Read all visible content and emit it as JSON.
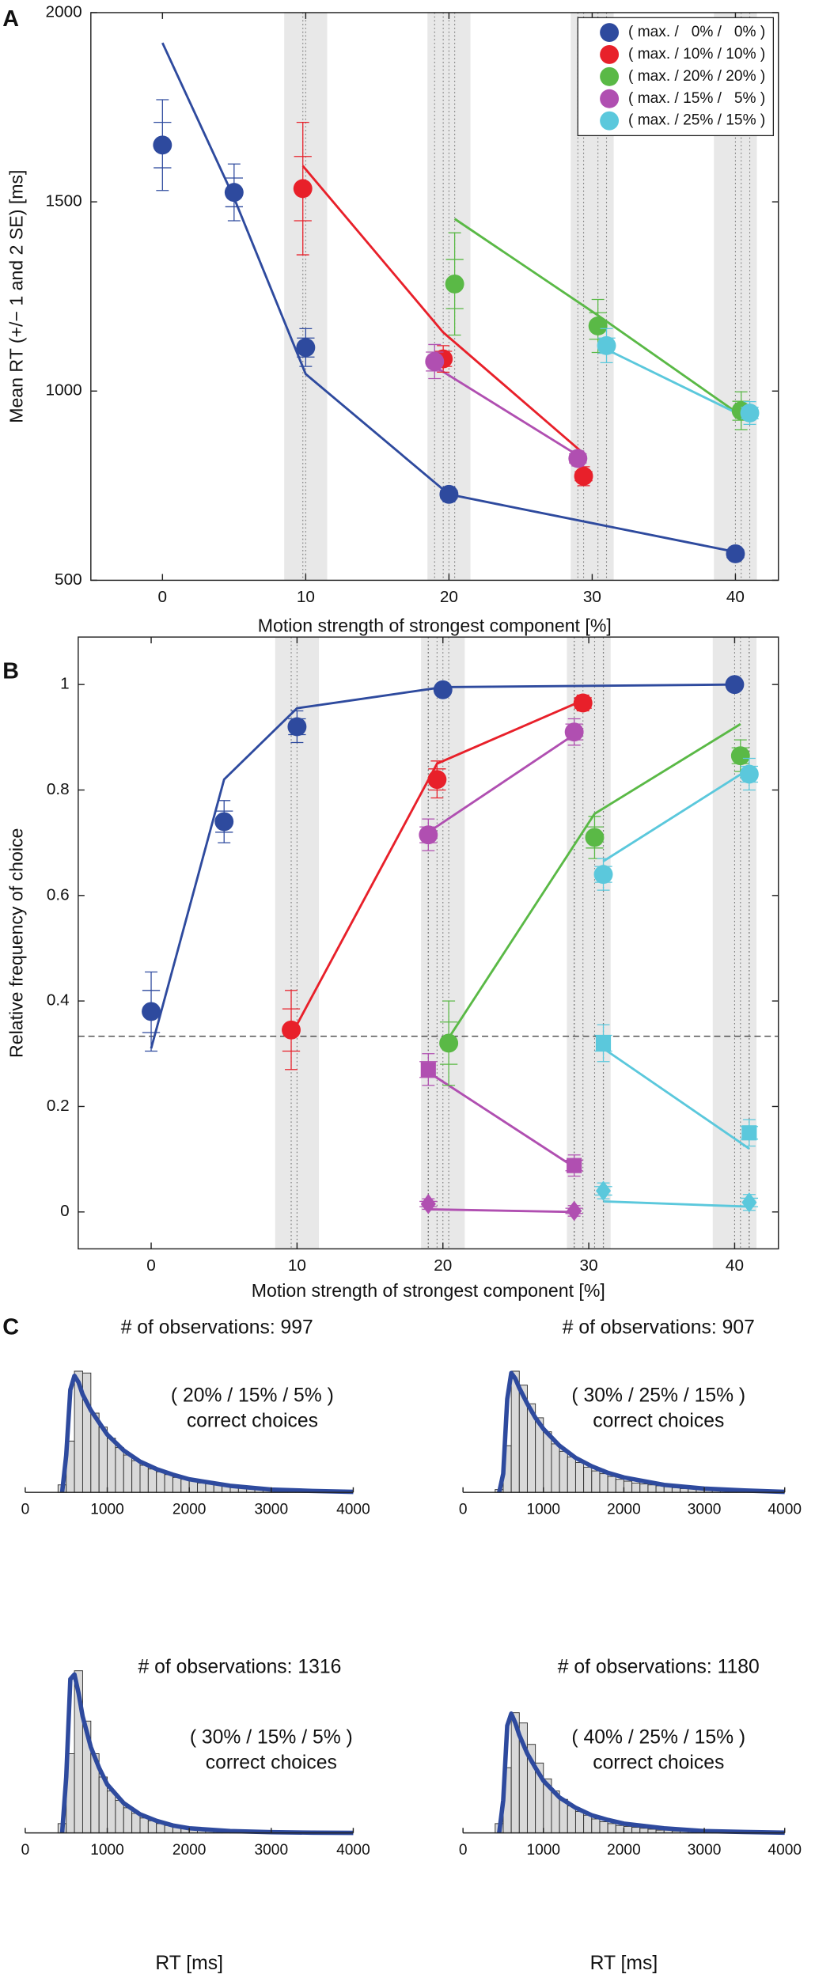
{
  "chart_data": [
    {
      "type": "scatter",
      "panel_label": "A",
      "xlabel": "Motion strength of strongest component [%]",
      "ylabel": "Mean RT (+/− 1 and 2 SE) [ms]",
      "xlim": [
        -5,
        43
      ],
      "ylim": [
        500,
        2000
      ],
      "xticks": [
        0,
        10,
        20,
        30,
        40
      ],
      "yticks": [
        500,
        1000,
        1500,
        2000
      ],
      "shaded_bands": [
        [
          8.5,
          11.5
        ],
        [
          18.5,
          21.5
        ],
        [
          28.5,
          31.5
        ],
        [
          38.5,
          41.5
        ]
      ],
      "legend": "upper right",
      "series": [
        {
          "name": "( max. /   0% /   0% )",
          "color": "#2e4a9e",
          "marker": "circle",
          "x": [
            0,
            5,
            10,
            20,
            40
          ],
          "values": [
            1650,
            1525,
            1115,
            727,
            570
          ],
          "error_1se": [
            60,
            38,
            25,
            10,
            10
          ],
          "error_2se": [
            120,
            75,
            50,
            20,
            18
          ],
          "fit": {
            "x": [
              0,
              5,
              10,
              20,
              40
            ],
            "values": [
              1920,
              1510,
              1045,
              727,
              575
            ]
          }
        },
        {
          "name": "( max. / 10% / 10% )",
          "color": "#e8202a",
          "marker": "circle",
          "x": [
            9.8,
            19.6,
            29.4
          ],
          "values": [
            1535,
            1085,
            775
          ],
          "error_1se": [
            85,
            20,
            12
          ],
          "error_2se": [
            175,
            35,
            25
          ],
          "fit": {
            "x": [
              9.8,
              19.6,
              29.4
            ],
            "values": [
              1595,
              1155,
              835
            ]
          }
        },
        {
          "name": "( max. / 20% / 20% )",
          "color": "#5ab946",
          "marker": "circle",
          "x": [
            20.4,
            30.4,
            40.4
          ],
          "values": [
            1283,
            1172,
            948
          ],
          "error_1se": [
            65,
            35,
            25
          ],
          "error_2se": [
            135,
            70,
            50
          ],
          "fit": {
            "x": [
              20.4,
              30.4,
              40.4
            ],
            "values": [
              1455,
              1200,
              935
            ]
          }
        },
        {
          "name": "( max. / 15% /   5% )",
          "color": "#b04fb1",
          "marker": "circle",
          "x": [
            19,
            29
          ],
          "values": [
            1078,
            822
          ],
          "error_1se": [
            25,
            12
          ],
          "error_2se": [
            45,
            20
          ],
          "fit": {
            "x": [
              19,
              29
            ],
            "values": [
              1065,
              830
            ]
          }
        },
        {
          "name": "( max. / 25% / 15% )",
          "color": "#5bc8dc",
          "marker": "circle",
          "x": [
            31,
            41
          ],
          "values": [
            1120,
            942
          ],
          "error_1se": [
            20,
            15
          ],
          "error_2se": [
            45,
            30
          ],
          "fit": {
            "x": [
              31,
              41
            ],
            "values": [
              1110,
              925
            ]
          }
        }
      ]
    },
    {
      "type": "scatter",
      "panel_label": "B",
      "xlabel": "Motion strength of strongest component [%]",
      "ylabel": "Relative frequency of choice",
      "xlim": [
        -5,
        43
      ],
      "ylim": [
        -0.07,
        1.09
      ],
      "xticks": [
        0,
        10,
        20,
        30,
        40
      ],
      "yticks": [
        0,
        0.2,
        0.4,
        0.6,
        0.8,
        1
      ],
      "shaded_bands": [
        [
          8.5,
          11.5
        ],
        [
          18.5,
          21.5
        ],
        [
          28.5,
          31.5
        ],
        [
          38.5,
          41.5
        ]
      ],
      "reference_line": 0.333,
      "series": [
        {
          "color": "#2e4a9e",
          "marker": "circle",
          "x": [
            0,
            5,
            10,
            20,
            40
          ],
          "values": [
            0.38,
            0.74,
            0.92,
            0.99,
            1.0
          ],
          "error_1se": [
            0.04,
            0.02,
            0.015,
            0.005,
            0.003
          ],
          "error_2se": [
            0.075,
            0.04,
            0.03,
            0.01,
            0.005
          ],
          "fit": {
            "x": [
              0,
              5,
              10,
              20,
              40
            ],
            "values": [
              0.31,
              0.82,
              0.955,
              0.995,
              1.0
            ]
          }
        },
        {
          "color": "#e8202a",
          "marker": "circle",
          "x": [
            9.6,
            19.6,
            29.6
          ],
          "values": [
            0.345,
            0.82,
            0.965
          ],
          "error_1se": [
            0.04,
            0.02,
            0.01
          ],
          "error_2se": [
            0.075,
            0.035,
            0.015
          ],
          "fit": {
            "x": [
              9.6,
              19.6,
              29.6
            ],
            "values": [
              0.335,
              0.85,
              0.97
            ]
          }
        },
        {
          "color": "#5ab946",
          "marker": "circle",
          "x": [
            20.4,
            30.4,
            40.4
          ],
          "values": [
            0.32,
            0.71,
            0.865
          ],
          "error_1se": [
            0.04,
            0.02,
            0.015
          ],
          "error_2se": [
            0.08,
            0.04,
            0.03
          ],
          "fit": {
            "x": [
              20.4,
              30.4,
              40.4
            ],
            "values": [
              0.33,
              0.755,
              0.925
            ]
          }
        },
        {
          "color": "#b04fb1",
          "marker": "circle",
          "x": [
            19,
            29
          ],
          "values": [
            0.715,
            0.91
          ],
          "error_1se": [
            0.015,
            0.015
          ],
          "error_2se": [
            0.03,
            0.025
          ],
          "fit": {
            "x": [
              19,
              29
            ],
            "values": [
              0.72,
              0.905
            ]
          }
        },
        {
          "color": "#b04fb1",
          "marker": "square",
          "x": [
            19,
            29
          ],
          "values": [
            0.27,
            0.088
          ],
          "error_1se": [
            0.015,
            0.01
          ],
          "error_2se": [
            0.03,
            0.02
          ],
          "fit": {
            "x": [
              19,
              29
            ],
            "values": [
              0.265,
              0.085
            ]
          }
        },
        {
          "color": "#b04fb1",
          "marker": "diamond",
          "x": [
            19,
            29
          ],
          "values": [
            0.015,
            0.002
          ],
          "error_1se": [
            0.005,
            0.005
          ],
          "error_2se": [
            0.01,
            0.01
          ],
          "fit": {
            "x": [
              19,
              29
            ],
            "values": [
              0.005,
              0.0
            ]
          }
        },
        {
          "color": "#5bc8dc",
          "marker": "circle",
          "x": [
            31,
            41
          ],
          "values": [
            0.64,
            0.83
          ],
          "error_1se": [
            0.015,
            0.015
          ],
          "error_2se": [
            0.03,
            0.03
          ],
          "fit": {
            "x": [
              31,
              41
            ],
            "values": [
              0.665,
              0.84
            ]
          }
        },
        {
          "color": "#5bc8dc",
          "marker": "square",
          "x": [
            31,
            41
          ],
          "values": [
            0.32,
            0.15
          ],
          "error_1se": [
            0.015,
            0.012
          ],
          "error_2se": [
            0.035,
            0.025
          ],
          "fit": {
            "x": [
              31,
              41
            ],
            "values": [
              0.31,
              0.12
            ]
          }
        },
        {
          "color": "#5bc8dc",
          "marker": "diamond",
          "x": [
            31,
            41
          ],
          "values": [
            0.04,
            0.018
          ],
          "error_1se": [
            0.008,
            0.008
          ],
          "error_2se": [
            0.015,
            0.015
          ],
          "fit": {
            "x": [
              31,
              41
            ],
            "values": [
              0.02,
              0.01
            ]
          }
        }
      ]
    },
    {
      "type": "histogram",
      "panel_label": "C",
      "title": "# of observations: 997",
      "annotation": [
        "( 20% / 15% / 5% )",
        "correct choices"
      ],
      "xlim": [
        0,
        4000
      ],
      "xticks": [
        0,
        1000,
        2000,
        3000,
        4000
      ],
      "ylim": [
        0,
        180
      ],
      "color": "#d9d9d9",
      "fit_color": "#2e4a9e",
      "bins": [
        400,
        500,
        600,
        700,
        800,
        900,
        1000,
        1100,
        1200,
        1300,
        1400,
        1500,
        1600,
        1700,
        1800,
        1900,
        2000,
        2100,
        2200,
        2300,
        2400,
        2500,
        2600,
        2700,
        2800,
        2900,
        3000,
        3100,
        3200,
        3300,
        3400,
        3500
      ],
      "values": [
        8,
        55,
        130,
        128,
        85,
        70,
        58,
        48,
        40,
        34,
        29,
        25,
        22,
        19,
        16,
        14,
        12,
        10,
        9,
        8,
        7,
        6,
        5,
        5,
        4,
        3,
        3,
        2,
        2,
        2,
        1
      ],
      "fit": {
        "x": [
          450,
          500,
          550,
          600,
          650,
          700,
          800,
          900,
          1000,
          1200,
          1400,
          1600,
          1800,
          2000,
          2500,
          3000,
          3500,
          4000
        ],
        "values": [
          0,
          40,
          110,
          125,
          118,
          105,
          88,
          75,
          62,
          45,
          33,
          25,
          19,
          14,
          7,
          3,
          1.5,
          0.5
        ]
      }
    },
    {
      "type": "histogram",
      "title": "# of observations: 907",
      "annotation": [
        "( 30% / 25% / 15% )",
        "correct choices"
      ],
      "xlim": [
        0,
        4000
      ],
      "xticks": [
        0,
        1000,
        2000,
        3000,
        4000
      ],
      "ylim": [
        0,
        180
      ],
      "color": "#d9d9d9",
      "fit_color": "#2e4a9e",
      "bins": [
        400,
        500,
        600,
        700,
        800,
        900,
        1000,
        1100,
        1200,
        1300,
        1400,
        1500,
        1600,
        1700,
        1800,
        1900,
        2000,
        2100,
        2200,
        2300,
        2400,
        2500,
        2600,
        2700,
        2800,
        2900,
        3000,
        3100,
        3200,
        3300,
        3400,
        3500
      ],
      "values": [
        3,
        50,
        130,
        115,
        95,
        80,
        65,
        52,
        44,
        38,
        32,
        27,
        23,
        20,
        17,
        14,
        12,
        10,
        9,
        8,
        7,
        6,
        5,
        4,
        4,
        3,
        3,
        2,
        2,
        2,
        1
      ],
      "fit": {
        "x": [
          450,
          500,
          550,
          600,
          650,
          700,
          800,
          900,
          1000,
          1200,
          1400,
          1600,
          1800,
          2000,
          2500,
          3000,
          3500,
          4000
        ],
        "values": [
          0,
          20,
          100,
          128,
          122,
          112,
          95,
          80,
          68,
          50,
          37,
          28,
          21,
          16,
          8,
          4,
          2,
          0.5
        ]
      }
    },
    {
      "type": "histogram",
      "title": "# of observations: 1316",
      "annotation": [
        "( 30% / 15% / 5% )",
        "correct choices"
      ],
      "xlabel": "RT [ms]",
      "xlim": [
        0,
        4000
      ],
      "xticks": [
        0,
        1000,
        2000,
        3000,
        4000
      ],
      "ylim": [
        0,
        180
      ],
      "color": "#d9d9d9",
      "fit_color": "#2e4a9e",
      "bins": [
        400,
        500,
        600,
        700,
        800,
        900,
        1000,
        1100,
        1200,
        1300,
        1400,
        1500,
        1600,
        1700,
        1800,
        1900,
        2000,
        2100,
        2200,
        2300,
        2400,
        2500,
        2600,
        2700,
        2800,
        2900,
        3000,
        3100,
        3200,
        3300,
        3400,
        3500
      ],
      "values": [
        10,
        85,
        174,
        120,
        85,
        60,
        45,
        35,
        27,
        21,
        16,
        13,
        10,
        8,
        6,
        5,
        4,
        3,
        3,
        2,
        2,
        1,
        1,
        1,
        1,
        1,
        0,
        0,
        0,
        0,
        0
      ],
      "fit": {
        "x": [
          450,
          500,
          550,
          600,
          650,
          700,
          800,
          900,
          1000,
          1200,
          1400,
          1600,
          1800,
          2000,
          2500,
          3000,
          3500,
          4000
        ],
        "values": [
          0,
          60,
          165,
          170,
          150,
          125,
          92,
          70,
          52,
          32,
          20,
          13,
          8,
          5,
          2,
          0.8,
          0.3,
          0.1
        ]
      }
    },
    {
      "type": "histogram",
      "title": "# of observations: 1180",
      "annotation": [
        "( 40% / 25% / 15% )",
        "correct choices"
      ],
      "xlabel": "RT [ms]",
      "xlim": [
        0,
        4000
      ],
      "xticks": [
        0,
        1000,
        2000,
        3000,
        4000
      ],
      "ylim": [
        0,
        180
      ],
      "color": "#d9d9d9",
      "fit_color": "#2e4a9e",
      "bins": [
        400,
        500,
        600,
        700,
        800,
        900,
        1000,
        1100,
        1200,
        1300,
        1400,
        1500,
        1600,
        1700,
        1800,
        1900,
        2000,
        2100,
        2200,
        2300,
        2400,
        2500,
        2600,
        2700,
        2800,
        2900,
        3000,
        3100,
        3200,
        3300,
        3400,
        3500
      ],
      "values": [
        10,
        70,
        129,
        118,
        95,
        75,
        58,
        45,
        36,
        29,
        23,
        19,
        15,
        12,
        10,
        8,
        7,
        6,
        5,
        4,
        3,
        3,
        2,
        2,
        2,
        1,
        1,
        1,
        1,
        1,
        1
      ],
      "fit": {
        "x": [
          450,
          500,
          550,
          600,
          650,
          700,
          800,
          900,
          1000,
          1200,
          1400,
          1600,
          1800,
          2000,
          2500,
          3000,
          3500,
          4000
        ],
        "values": [
          0,
          35,
          115,
          128,
          118,
          105,
          85,
          70,
          56,
          38,
          27,
          19,
          14,
          10,
          5,
          2,
          1,
          0.3
        ]
      }
    }
  ]
}
